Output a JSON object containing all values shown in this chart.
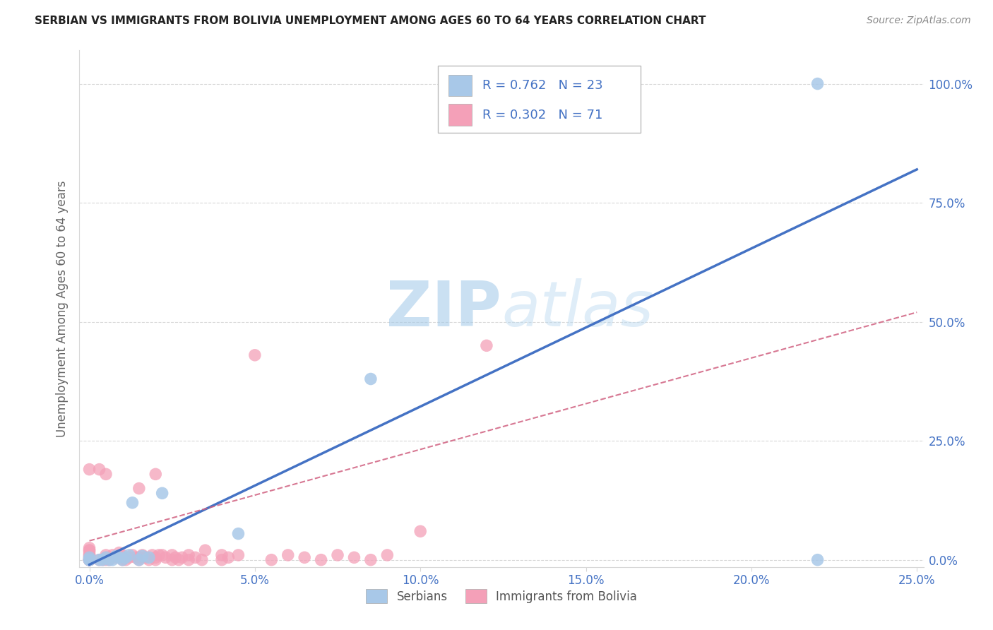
{
  "title": "SERBIAN VS IMMIGRANTS FROM BOLIVIA UNEMPLOYMENT AMONG AGES 60 TO 64 YEARS CORRELATION CHART",
  "source": "Source: ZipAtlas.com",
  "ylabel": "Unemployment Among Ages 60 to 64 years",
  "xlim": [
    0.0,
    0.25
  ],
  "ylim": [
    0.0,
    1.05
  ],
  "xtick_vals": [
    0.0,
    0.05,
    0.1,
    0.15,
    0.2,
    0.25
  ],
  "xtick_labels": [
    "0.0%",
    "5.0%",
    "10.0%",
    "15.0%",
    "20.0%",
    "25.0%"
  ],
  "ytick_vals": [
    0.0,
    0.25,
    0.5,
    0.75,
    1.0
  ],
  "ytick_labels": [
    "0.0%",
    "25.0%",
    "50.0%",
    "75.0%",
    "100.0%"
  ],
  "serbian_color": "#a8c8e8",
  "serbian_line_color": "#4472c4",
  "bolivia_color": "#f4a0b8",
  "bolivia_line_color": "#d06080",
  "watermark_color": "#d0e8f8",
  "grid_color": "#d8d8d8",
  "title_color": "#222222",
  "tick_color": "#4472c4",
  "ylabel_color": "#666666",
  "legend_R_serbian": "R = 0.762",
  "legend_N_serbian": "N = 23",
  "legend_R_bolivia": "R = 0.302",
  "legend_N_bolivia": "N = 71",
  "serbian_line_x0": 0.0,
  "serbian_line_y0": -0.01,
  "serbian_line_x1": 0.25,
  "serbian_line_y1": 0.82,
  "bolivia_line_x0": 0.0,
  "bolivia_line_y0": 0.04,
  "bolivia_line_x1": 0.25,
  "bolivia_line_y1": 0.52,
  "serbian_x": [
    0.0,
    0.0,
    0.0,
    0.0,
    0.003,
    0.004,
    0.005,
    0.006,
    0.007,
    0.008,
    0.009,
    0.01,
    0.011,
    0.012,
    0.013,
    0.015,
    0.016,
    0.018,
    0.022,
    0.045,
    0.085,
    0.22,
    0.22
  ],
  "serbian_y": [
    0.0,
    0.0,
    0.0,
    0.005,
    0.0,
    0.0,
    0.005,
    0.0,
    0.0,
    0.008,
    0.005,
    0.0,
    0.005,
    0.01,
    0.12,
    0.0,
    0.008,
    0.005,
    0.14,
    0.055,
    0.38,
    0.0,
    1.0
  ],
  "bolivia_x": [
    0.0,
    0.0,
    0.0,
    0.0,
    0.0,
    0.0,
    0.0,
    0.0,
    0.0,
    0.0,
    0.0,
    0.0,
    0.0,
    0.0,
    0.0,
    0.003,
    0.003,
    0.004,
    0.005,
    0.005,
    0.005,
    0.005,
    0.006,
    0.007,
    0.008,
    0.009,
    0.01,
    0.01,
    0.01,
    0.011,
    0.012,
    0.013,
    0.014,
    0.015,
    0.015,
    0.015,
    0.016,
    0.017,
    0.018,
    0.019,
    0.02,
    0.02,
    0.02,
    0.021,
    0.022,
    0.023,
    0.025,
    0.025,
    0.026,
    0.027,
    0.028,
    0.03,
    0.03,
    0.032,
    0.034,
    0.035,
    0.04,
    0.04,
    0.042,
    0.045,
    0.05,
    0.055,
    0.06,
    0.065,
    0.07,
    0.075,
    0.08,
    0.085,
    0.09,
    0.1,
    0.12
  ],
  "bolivia_y": [
    0.0,
    0.0,
    0.0,
    0.0,
    0.0,
    0.0,
    0.005,
    0.005,
    0.01,
    0.01,
    0.015,
    0.02,
    0.02,
    0.025,
    0.19,
    0.0,
    0.19,
    0.0,
    0.0,
    0.005,
    0.01,
    0.18,
    0.0,
    0.01,
    0.005,
    0.015,
    0.0,
    0.005,
    0.01,
    0.0,
    0.005,
    0.01,
    0.005,
    0.0,
    0.005,
    0.15,
    0.01,
    0.005,
    0.0,
    0.01,
    0.0,
    0.005,
    0.18,
    0.01,
    0.01,
    0.005,
    0.0,
    0.01,
    0.005,
    0.0,
    0.005,
    0.0,
    0.01,
    0.005,
    0.0,
    0.02,
    0.0,
    0.01,
    0.005,
    0.01,
    0.43,
    0.0,
    0.01,
    0.005,
    0.0,
    0.01,
    0.005,
    0.0,
    0.01,
    0.06,
    0.45
  ]
}
